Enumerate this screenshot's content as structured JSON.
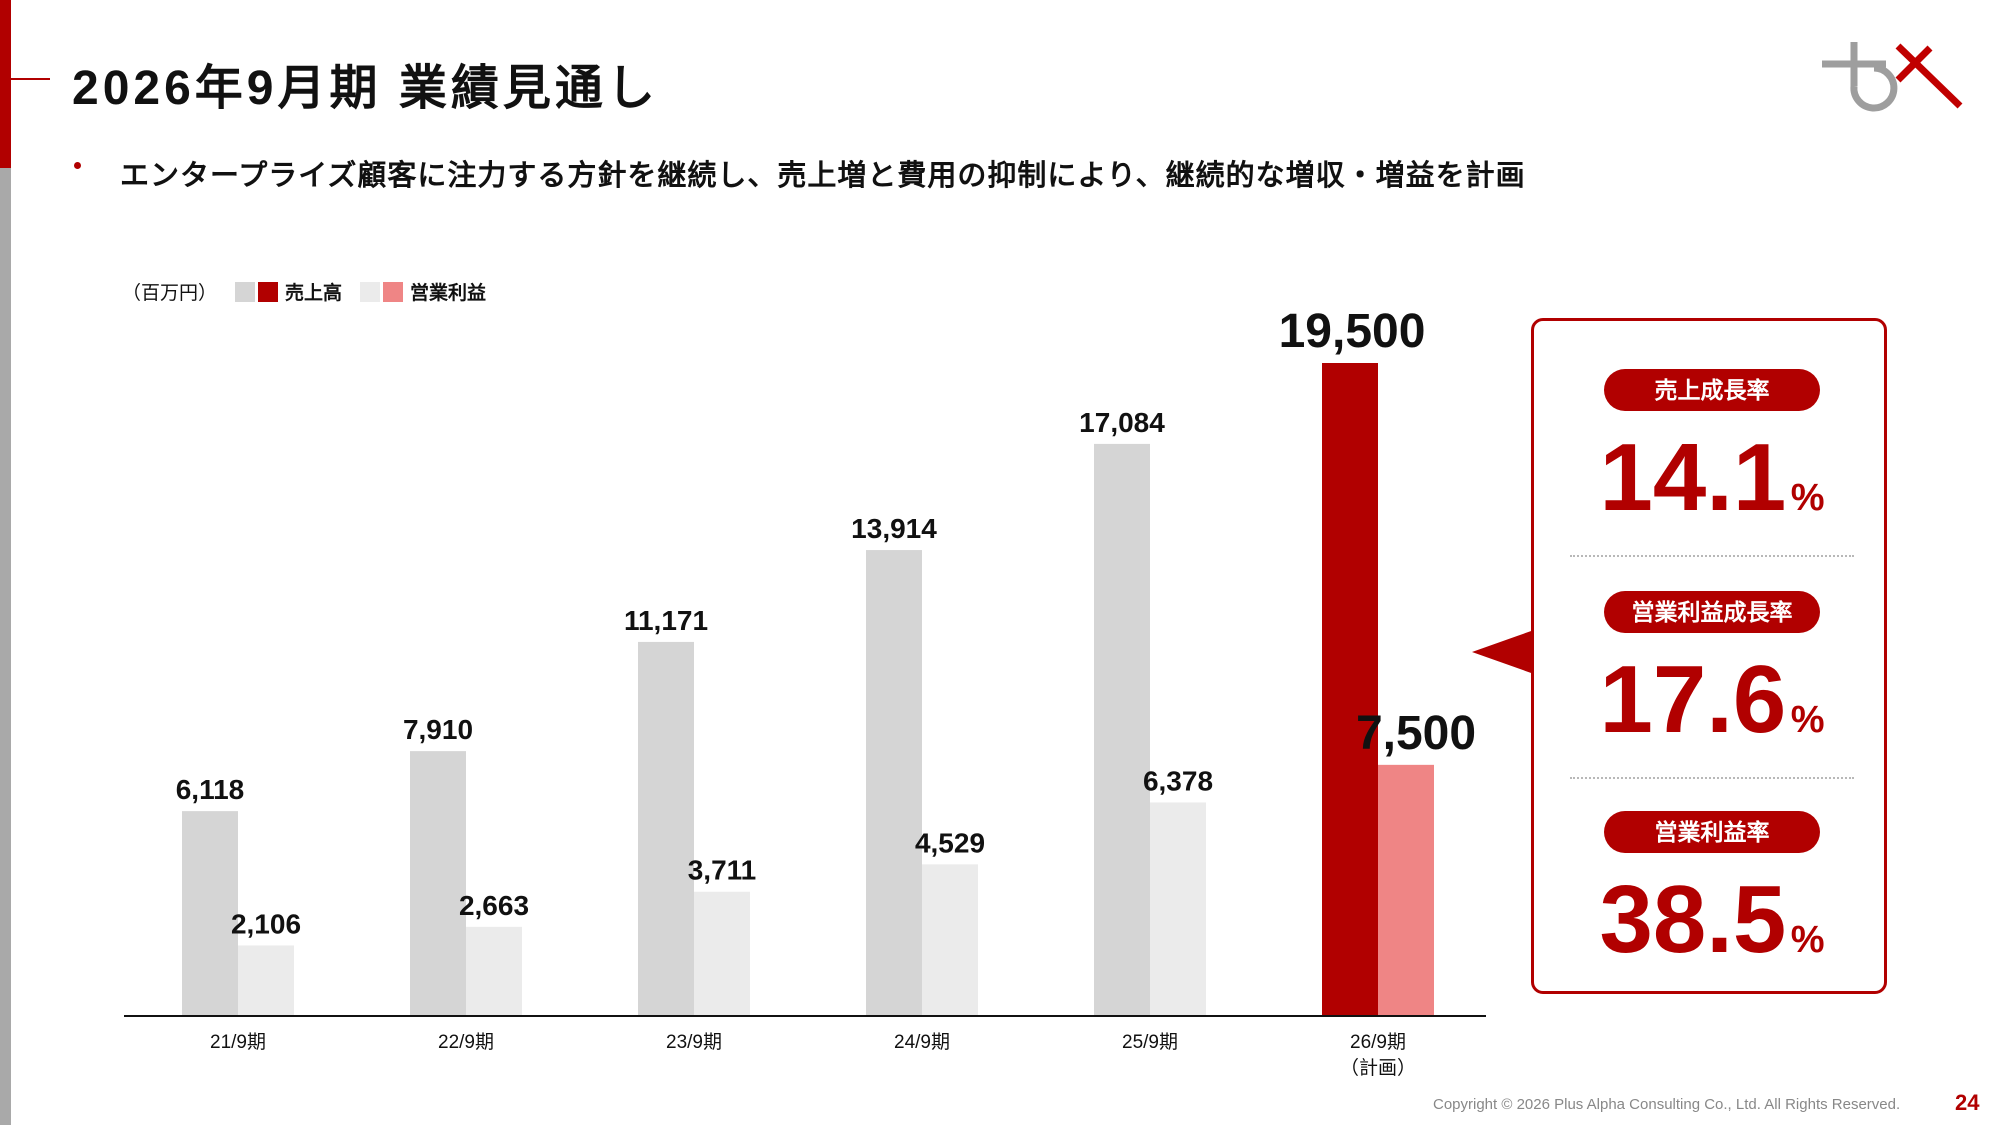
{
  "title": "2026年9月期 業績見通し",
  "bullet": "エンタープライズ顧客に注力する方針を継続し、売上増と費用の抑制により、継続的な増収・増益を計画",
  "legend": {
    "unit": "（百万円）",
    "revenue_label": "売上高",
    "profit_label": "営業利益"
  },
  "colors": {
    "brand_red": "#b10000",
    "revenue_past": "#d5d5d5",
    "profit_past": "#ebebeb",
    "revenue_plan": "#b10000",
    "profit_plan": "#ef8585"
  },
  "chart_data": {
    "type": "bar",
    "categories": [
      "21/9期",
      "22/9期",
      "23/9期",
      "24/9期",
      "25/9期",
      "26/9期"
    ],
    "category_notes": [
      "",
      "",
      "",
      "",
      "",
      "（計画）"
    ],
    "series": [
      {
        "name": "売上高",
        "values": [
          6118,
          7910,
          11171,
          13914,
          17084,
          19500
        ]
      },
      {
        "name": "営業利益",
        "values": [
          2106,
          2663,
          3711,
          4529,
          6378,
          7500
        ]
      }
    ],
    "value_labels": {
      "revenue": [
        "6,118",
        "7,910",
        "11,171",
        "13,914",
        "17,084",
        "19,500"
      ],
      "profit": [
        "2,106",
        "2,663",
        "3,711",
        "4,529",
        "6,378",
        "7,500"
      ]
    },
    "ylim": [
      0,
      19500
    ],
    "highlight_index": 5,
    "grid": false,
    "legend_position": "top-left"
  },
  "panel": {
    "items": [
      {
        "label": "売上成長率",
        "value": "14.1",
        "unit": "%"
      },
      {
        "label": "営業利益成長率",
        "value": "17.6",
        "unit": "%"
      },
      {
        "label": "営業利益率",
        "value": "38.5",
        "unit": "%"
      }
    ]
  },
  "footer": {
    "copyright": "Copyright © 2026 Plus Alpha Consulting Co., Ltd. All Rights Reserved.",
    "page_number": "24"
  }
}
